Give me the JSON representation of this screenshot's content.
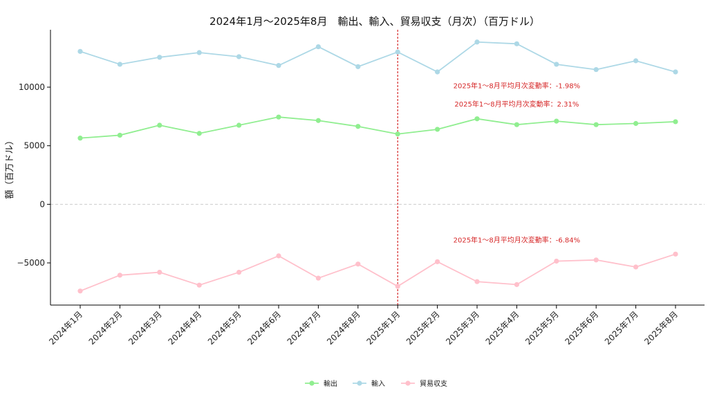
{
  "chart_data": {
    "type": "line",
    "title": "2024年1月～2025年8月　輸出、輸入、貿易収支（月次）（百万ドル）",
    "xlabel": "",
    "ylabel": "額（百万ドル）",
    "ylim": [
      -8600,
      14900
    ],
    "yticks": [
      -5000,
      0,
      5000,
      10000
    ],
    "yticklabels": [
      "−5000",
      "0",
      "5000",
      "10000"
    ],
    "grid": false,
    "zero_line": true,
    "legend_position": "bottom-center",
    "categories": [
      "2024年1月",
      "2024年2月",
      "2024年3月",
      "2024年4月",
      "2024年5月",
      "2024年6月",
      "2024年7月",
      "2024年8月",
      "2025年1月",
      "2025年2月",
      "2025年3月",
      "2025年4月",
      "2025年5月",
      "2025年6月",
      "2025年7月",
      "2025年8月"
    ],
    "divider_category": "2025年1月",
    "series": [
      {
        "name": "輸出",
        "color": "#90ee90",
        "values": [
          5650,
          5900,
          6750,
          6050,
          6750,
          7450,
          7150,
          6650,
          6000,
          6400,
          7300,
          6800,
          7100,
          6800,
          6900,
          7050
        ]
      },
      {
        "name": "輸入",
        "color": "#add8e6",
        "values": [
          13050,
          11950,
          12550,
          12950,
          12600,
          11850,
          13450,
          11750,
          13000,
          11300,
          13850,
          13700,
          11950,
          11500,
          12250,
          11300
        ]
      },
      {
        "name": "貿易収支",
        "color": "#ffc0cb",
        "values": [
          -7400,
          -6050,
          -5800,
          -6900,
          -5800,
          -4400,
          -6300,
          -5100,
          -7000,
          -4900,
          -6600,
          -6850,
          -4850,
          -4750,
          -5350,
          -4250
        ]
      }
    ],
    "annotations": [
      {
        "text": "2025年1～8月平均月次変動率：-1.98%",
        "x": "2025年4月",
        "y": 9900
      },
      {
        "text": "2025年1～8月平均月次変動率：2.31%",
        "x": "2025年4月",
        "y": 8350
      },
      {
        "text": "2025年1～8月平均月次変動率：-6.84%",
        "x": "2025年4月",
        "y": -3250
      }
    ]
  }
}
